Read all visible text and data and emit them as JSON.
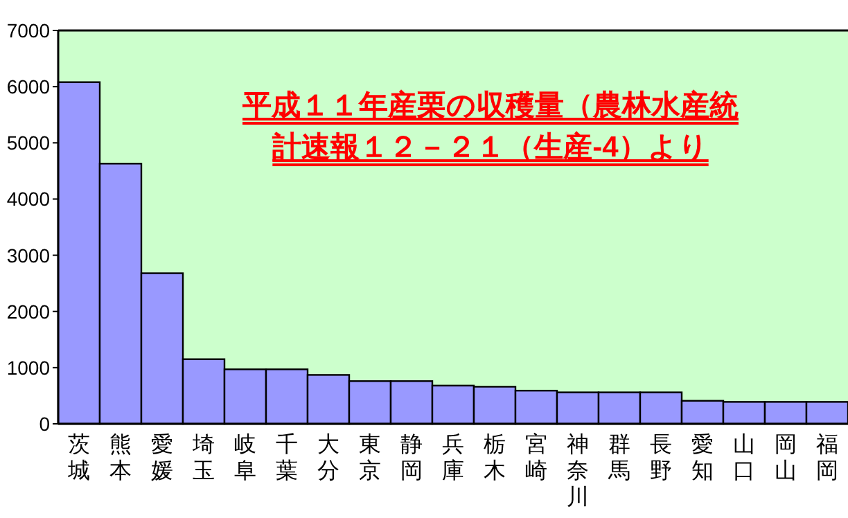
{
  "chart_data": {
    "type": "bar",
    "title": "平成１１年産栗の収穫量（農林水産統計速報１２－２１（生産-4）より",
    "categories": [
      "茨城",
      "熊本",
      "愛媛",
      "埼玉",
      "岐阜",
      "千葉",
      "大分",
      "東京",
      "静岡",
      "兵庫",
      "栃木",
      "宮崎",
      "神奈川",
      "群馬",
      "長野",
      "愛知",
      "山口",
      "岡山",
      "福岡"
    ],
    "values": [
      6080,
      4630,
      2680,
      1150,
      970,
      970,
      870,
      760,
      760,
      680,
      660,
      590,
      560,
      560,
      560,
      410,
      390,
      390,
      390
    ],
    "color": "#9999ff",
    "ylim": [
      0,
      7000
    ],
    "yticks": [
      0,
      1000,
      2000,
      3000,
      4000,
      5000,
      6000,
      7000
    ]
  }
}
